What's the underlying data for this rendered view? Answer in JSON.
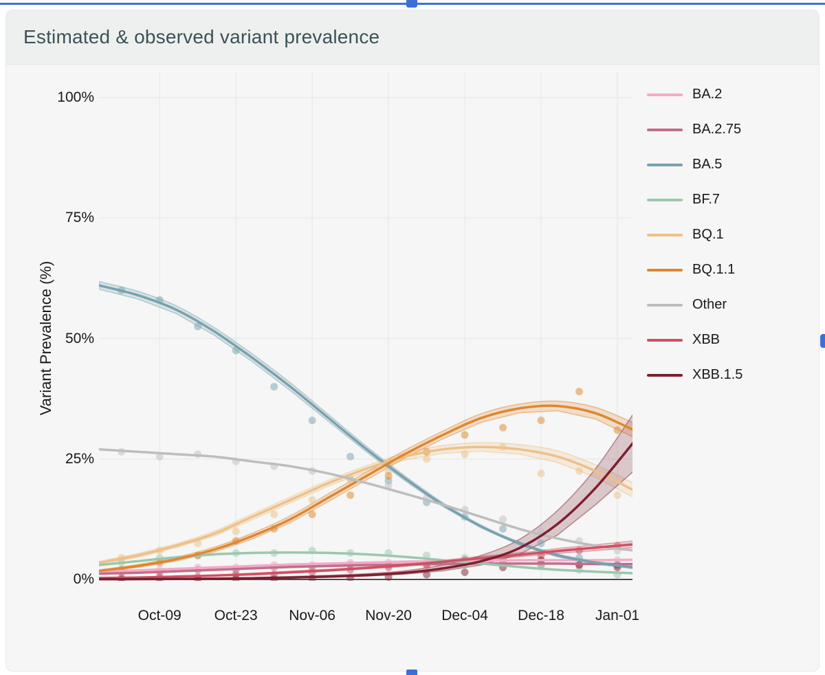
{
  "ui": {
    "selection_accent": "#3e6fd6"
  },
  "header": {
    "title": "Estimated & observed variant prevalence"
  },
  "chart_data": {
    "type": "line",
    "title": "Estimated & observed variant prevalence",
    "xlabel": "",
    "ylabel": "Variant Prevalence (%)",
    "ylim": [
      0,
      100
    ],
    "grid": true,
    "legend_position": "right",
    "x_tick_labels": [
      "Oct-09",
      "Oct-23",
      "Nov-06",
      "Nov-20",
      "Dec-04",
      "Dec-18",
      "Jan-01"
    ],
    "x_tick_days": [
      11,
      25,
      39,
      53,
      67,
      81,
      95
    ],
    "y_tick_labels": [
      "100%",
      "75%",
      "50%",
      "25%",
      "0%"
    ],
    "y_tick_values": [
      100,
      75,
      50,
      25,
      0
    ],
    "sample_dates": [
      "Sep-28",
      "Oct-05",
      "Oct-12",
      "Oct-19",
      "Oct-26",
      "Nov-02",
      "Nov-09",
      "Nov-16",
      "Nov-23",
      "Nov-30",
      "Dec-07",
      "Dec-14",
      "Dec-21",
      "Dec-28",
      "Jan-04"
    ],
    "sample_days": [
      0,
      7,
      14,
      21,
      28,
      35,
      42,
      49,
      56,
      63,
      70,
      77,
      84,
      91,
      98
    ],
    "observed_dates": [
      "Oct-02",
      "Oct-09",
      "Oct-16",
      "Oct-23",
      "Oct-30",
      "Nov-06",
      "Nov-13",
      "Nov-20",
      "Nov-27",
      "Dec-04",
      "Dec-11",
      "Dec-18",
      "Dec-25",
      "Jan-01"
    ],
    "observed_days": [
      4,
      11,
      18,
      25,
      32,
      39,
      46,
      53,
      60,
      67,
      74,
      81,
      88,
      95
    ],
    "series": [
      {
        "label": "BA.2",
        "color": "#f2aac6",
        "curve": [
          1.6,
          1.9,
          2.2,
          2.5,
          2.8,
          3.1,
          3.3,
          3.5,
          3.7,
          3.8,
          3.9,
          4.0,
          4.0,
          4.0,
          4.1
        ],
        "observed": [
          2,
          2,
          2.5,
          2.5,
          3,
          3,
          3.5,
          3.5,
          3.5,
          4,
          4,
          4,
          3.5,
          4
        ]
      },
      {
        "label": "BA.2.75",
        "color": "#c06e8b",
        "curve": [
          1.2,
          1.4,
          1.7,
          2.0,
          2.3,
          2.6,
          2.8,
          3.0,
          3.1,
          3.2,
          3.3,
          3.3,
          3.3,
          3.2,
          3.2
        ],
        "observed": [
          1.5,
          1.5,
          2,
          2,
          2.5,
          2.5,
          3,
          3,
          3,
          3.5,
          3.5,
          3,
          3,
          3
        ]
      },
      {
        "label": "BA.5",
        "color": "#78a1af",
        "curve": [
          61,
          59,
          56,
          51.5,
          46,
          40,
          33.5,
          27,
          21,
          15.5,
          11,
          7.5,
          5,
          3.5,
          2.5
        ],
        "band_lower": [
          60.2,
          58.2,
          55.2,
          50.7,
          45.2,
          39.2,
          32.8,
          26.4,
          20.5,
          15.1,
          10.7,
          7.2,
          4.7,
          3.2,
          2.2
        ],
        "band_upper": [
          61.8,
          59.8,
          56.8,
          52.3,
          46.8,
          40.8,
          34.2,
          27.6,
          21.5,
          15.9,
          11.3,
          7.8,
          5.3,
          3.8,
          2.8
        ],
        "observed": [
          60,
          58,
          52.5,
          47.5,
          40,
          33,
          25.5,
          20.5,
          16,
          13,
          10.5,
          7.5,
          4.5,
          3
        ]
      },
      {
        "label": "BF.7",
        "color": "#9bc7ad",
        "curve": [
          3.0,
          3.8,
          4.6,
          5.2,
          5.5,
          5.6,
          5.5,
          5.2,
          4.7,
          4.0,
          3.3,
          2.6,
          2.0,
          1.6,
          1.3
        ],
        "observed": [
          3.5,
          4.5,
          5,
          5.5,
          5.5,
          6,
          5.5,
          5.5,
          5,
          4.5,
          4,
          3,
          2,
          1
        ]
      },
      {
        "label": "BQ.1",
        "color": "#eec088",
        "curve": [
          3.5,
          5,
          7,
          9.5,
          13,
          16.5,
          20,
          23,
          25.5,
          27,
          27.5,
          27,
          25.5,
          22.5,
          18.5
        ],
        "band_lower": [
          3.2,
          4.6,
          6.6,
          9,
          12.4,
          15.9,
          19.4,
          22.4,
          24.8,
          26.2,
          26.6,
          26,
          24.3,
          21.2,
          17
        ],
        "band_upper": [
          3.8,
          5.4,
          7.4,
          10,
          13.6,
          17.1,
          20.6,
          23.6,
          26.2,
          27.8,
          28.4,
          28,
          26.7,
          23.8,
          20
        ],
        "observed": [
          4.5,
          6,
          7.5,
          10,
          13.5,
          16.5,
          20.5,
          22.5,
          25,
          26,
          27.5,
          22,
          22.5,
          17.5
        ]
      },
      {
        "label": "BQ.1.1",
        "color": "#e0862e",
        "curve": [
          1.8,
          2.8,
          4.2,
          6.2,
          9,
          12.5,
          17,
          21.5,
          26,
          30,
          33.5,
          35.5,
          36,
          34.5,
          31
        ],
        "band_lower": [
          1.6,
          2.5,
          3.8,
          5.7,
          8.4,
          11.8,
          16.2,
          20.7,
          25.2,
          29.2,
          32.6,
          34.6,
          35,
          33.3,
          29.5
        ],
        "band_upper": [
          2,
          3.1,
          4.6,
          6.7,
          9.6,
          13.2,
          17.8,
          22.3,
          26.8,
          30.8,
          34.4,
          36.4,
          37,
          35.7,
          32.5
        ],
        "observed": [
          2,
          3.5,
          5,
          8,
          10.5,
          13.5,
          17.5,
          21.5,
          26.5,
          30,
          31.5,
          33,
          39,
          31
        ]
      },
      {
        "label": "Other",
        "color": "#bdbdbd",
        "curve": [
          27,
          26.5,
          26,
          25.5,
          24.5,
          23.5,
          22,
          20,
          17.8,
          15.5,
          13,
          10.5,
          8.5,
          7,
          6
        ],
        "observed": [
          26.5,
          25.5,
          26,
          24.5,
          23.5,
          22.5,
          21,
          19.5,
          17,
          14.5,
          12.5,
          10,
          8,
          6
        ]
      },
      {
        "label": "XBB",
        "color": "#cf5063",
        "curve": [
          0.3,
          0.4,
          0.6,
          0.8,
          1.1,
          1.5,
          1.9,
          2.4,
          3,
          3.7,
          4.4,
          5.1,
          5.9,
          6.6,
          7.3
        ],
        "band_lower": [
          0.2,
          0.3,
          0.5,
          0.7,
          0.9,
          1.3,
          1.7,
          2.2,
          2.7,
          3.4,
          4,
          4.7,
          5.4,
          6,
          6.6
        ],
        "band_upper": [
          0.4,
          0.5,
          0.7,
          0.9,
          1.3,
          1.7,
          2.1,
          2.6,
          3.3,
          4,
          4.8,
          5.5,
          6.4,
          7.2,
          8
        ],
        "observed": [
          0.3,
          0.5,
          0.5,
          1,
          1,
          1.5,
          2,
          2.5,
          3,
          4,
          4.5,
          5,
          6,
          7
        ]
      },
      {
        "label": "XBB.1.5",
        "color": "#7d1f30",
        "curve": [
          0.05,
          0.07,
          0.1,
          0.15,
          0.25,
          0.4,
          0.6,
          0.9,
          1.4,
          2.3,
          3.8,
          6.5,
          11.5,
          19,
          28.5
        ],
        "band_lower": [
          0,
          0,
          0.05,
          0.1,
          0.15,
          0.3,
          0.45,
          0.7,
          1.1,
          1.8,
          3,
          5.2,
          9.2,
          15.5,
          22.5
        ],
        "band_upper": [
          0.1,
          0.15,
          0.2,
          0.25,
          0.4,
          0.6,
          0.85,
          1.2,
          1.8,
          3,
          5,
          8.3,
          14.3,
          23,
          34.5
        ],
        "observed": [
          0,
          0,
          0,
          0.1,
          0.1,
          0.2,
          0.3,
          0.5,
          1,
          1.5,
          2.5,
          4,
          3,
          2.5
        ]
      }
    ]
  }
}
